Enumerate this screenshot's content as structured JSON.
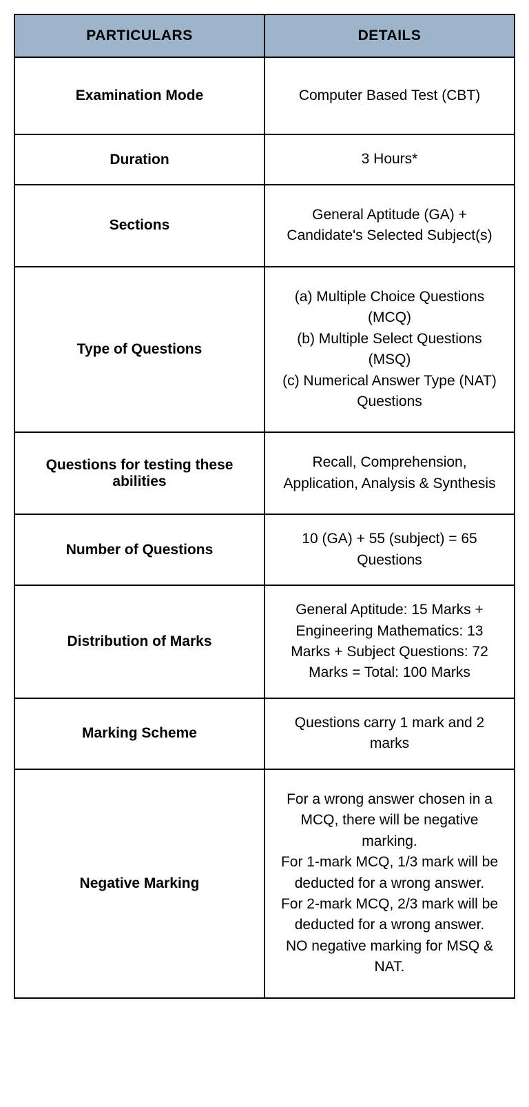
{
  "table": {
    "header_bg": "#9db4ca",
    "border_color": "#000000",
    "columns": [
      "PARTICULARS",
      "DETAILS"
    ],
    "rows": [
      {
        "label": "Examination Mode",
        "value": "Computer Based Test (CBT)",
        "pad": "tall"
      },
      {
        "label": "Duration",
        "value": "3 Hours*",
        "pad": "short"
      },
      {
        "label": "Sections",
        "value": "General Aptitude (GA) + Candidate's Selected Subject(s)",
        "pad": "med"
      },
      {
        "label": "Type of Questions",
        "value": "(a) Multiple Choice Questions (MCQ)\n(b) Multiple Select Questions (MSQ)\n(c) Numerical Answer Type (NAT) Questions",
        "pad": "med"
      },
      {
        "label": "Questions for testing these abilities",
        "value": "Recall, Comprehension, Application, Analysis & Synthesis",
        "pad": "med"
      },
      {
        "label": "Number of Questions",
        "value": "10 (GA) + 55 (subject) = 65 Questions",
        "pad": "short"
      },
      {
        "label": "Distribution of Marks",
        "value": "General Aptitude: 15 Marks + Engineering Mathematics: 13 Marks + Subject Questions: 72 Marks = Total: 100 Marks",
        "pad": "short"
      },
      {
        "label": "Marking Scheme",
        "value": "Questions carry 1 mark and 2 marks",
        "pad": "short"
      },
      {
        "label": "Negative Marking",
        "value": "For a wrong answer chosen in a MCQ, there will be negative marking.\nFor 1-mark MCQ, 1/3 mark will be deducted for a wrong answer.\nFor 2-mark MCQ, 2/3 mark will be deducted for a wrong answer.\nNO negative marking for MSQ & NAT.",
        "pad": "med"
      }
    ]
  }
}
